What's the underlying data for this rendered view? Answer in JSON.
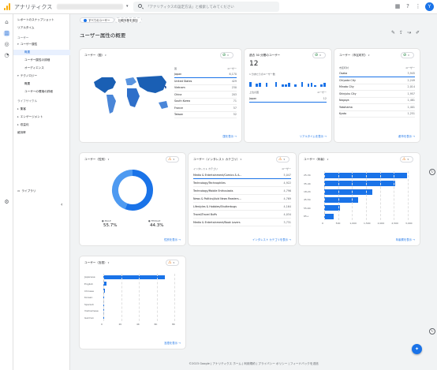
{
  "app": {
    "title": "アナリティクス"
  },
  "search": {
    "placeholder": "「アナリティクスの設定方法」と検索してみてください"
  },
  "nav": {
    "items": [
      {
        "label": "レポートのスナップショット",
        "type": "top"
      },
      {
        "label": "リアルタイム",
        "type": "top"
      },
      {
        "label": "ユーザー",
        "type": "section"
      },
      {
        "label": "ユーザー属性",
        "type": "group",
        "caret": "▾",
        "selected_group": true
      },
      {
        "label": "概要",
        "type": "sub",
        "selected": true
      },
      {
        "label": "ユーザー属性の詳細",
        "type": "sub"
      },
      {
        "label": "オーディエンス",
        "type": "sub"
      },
      {
        "label": "テクノロジー",
        "type": "group",
        "caret": "▾"
      },
      {
        "label": "概要",
        "type": "sub"
      },
      {
        "label": "ユーザーの環境の詳細",
        "type": "sub"
      },
      {
        "label": "ライフサイクル",
        "type": "section"
      },
      {
        "label": "集客",
        "type": "group",
        "caret": "▸"
      },
      {
        "label": "エンゲージメント",
        "type": "group",
        "caret": "▸"
      },
      {
        "label": "収益化",
        "type": "group",
        "caret": "▸"
      },
      {
        "label": "維持率",
        "type": "top"
      }
    ],
    "library": "ライブラリ",
    "collapse": "‹"
  },
  "filters": {
    "chip1": "すべてのユーザー",
    "chip2": "比較対象を追加",
    "add": "+"
  },
  "page": {
    "title": "ユーザー属性の概要"
  },
  "map_card": {
    "title": "ユーザー（国）",
    "col_country": "国",
    "col_users": "ユーザー",
    "rows": [
      {
        "name": "Japan",
        "value": "6,170"
      },
      {
        "name": "United States",
        "value": "429"
      },
      {
        "name": "Vietnam",
        "value": "230"
      },
      {
        "name": "China",
        "value": "203"
      },
      {
        "name": "South Korea",
        "value": "71"
      },
      {
        "name": "France",
        "value": "57"
      },
      {
        "name": "Taiwan",
        "value": "52"
      }
    ],
    "link": "国を表示"
  },
  "realtime_card": {
    "title": "過去 30 分間のユーザー",
    "value": "12",
    "sub": "1 分あたりのユーザー数",
    "col_country": "上位の国",
    "col_users": "ユーザー",
    "rows": [
      {
        "name": "Japan",
        "value": "12"
      }
    ],
    "link": "リアルタイムを表示"
  },
  "city_card": {
    "title": "ユーザー（市区町村）",
    "col_city": "市区町村",
    "col_users": "ユーザー",
    "rows": [
      {
        "name": "Osaka",
        "value": "3,945"
      },
      {
        "name": "Chiyoda City",
        "value": "2,249"
      },
      {
        "name": "Minato City",
        "value": "2,014"
      },
      {
        "name": "Shinjuku City",
        "value": "1,957"
      },
      {
        "name": "Nagoya",
        "value": "1,481"
      },
      {
        "name": "Yokohama",
        "value": "1,401"
      },
      {
        "name": "Kyoto",
        "value": "1,251"
      }
    ],
    "link": "都市を表示"
  },
  "gender_card": {
    "title": "ユーザー（性別）",
    "male_label": "MALE",
    "male_value": "55.7%",
    "female_label": "FEMALE",
    "female_value": "44.3%",
    "link": "性別を表示"
  },
  "interest_card": {
    "title": "ユーザー（インタレスト カテゴリ）",
    "col_cat": "インタレスト カテゴリ",
    "col_users": "ユーザー",
    "rows": [
      {
        "name": "Media & Entertainment/Comics & A...",
        "value": "5,047"
      },
      {
        "name": "Technology/Technophiles",
        "value": "4,922"
      },
      {
        "name": "Technology/Mobile Enthusiasts",
        "value": "4,796"
      },
      {
        "name": "News & Politics/Avid News Readers...",
        "value": "4,769"
      },
      {
        "name": "Lifestyles & Hobbies/Shutterbugs",
        "value": "4,164"
      },
      {
        "name": "Travel/Travel Buffs",
        "value": "4,034"
      },
      {
        "name": "Media & Entertainment/Book Lovers",
        "value": "3,731"
      }
    ],
    "link": "インタレスト カテゴリを表示"
  },
  "age_card": {
    "title": "ユーザー（年齢）",
    "x_ticks": [
      "0",
      "500",
      "1,000",
      "1,500",
      "2,000",
      "2,500",
      "3,000"
    ],
    "link": "年齢層を表示"
  },
  "language_card": {
    "title": "ユーザー（言語）",
    "x_ticks": [
      "0",
      "2K",
      "4K",
      "6K",
      "8K"
    ],
    "link": "言語を表示"
  },
  "footer": {
    "text": "©2023 Google | アナリティクス ホーム | 利用規約 | プライバシー ポリシー | フィードバックを送信"
  },
  "chart_data": [
    {
      "type": "bar",
      "orientation": "horizontal",
      "title": "ユーザー（年齢）",
      "categories": [
        "25-34",
        "35-44",
        "18-24",
        "45-54",
        "55-64",
        "65+"
      ],
      "values": [
        2960,
        2550,
        1730,
        1220,
        560,
        330
      ],
      "xlim": [
        0,
        3000
      ]
    },
    {
      "type": "bar",
      "orientation": "horizontal",
      "title": "ユーザー（言語）",
      "categories": [
        "Japanese",
        "English",
        "Chinese",
        "Korean",
        "Spanish",
        "Vietnamese",
        "German"
      ],
      "values": [
        6900,
        330,
        200,
        60,
        45,
        30,
        25
      ],
      "xlim": [
        0,
        8000
      ]
    },
    {
      "type": "pie",
      "title": "ユーザー（性別）",
      "categories": [
        "MALE",
        "FEMALE"
      ],
      "values": [
        55.7,
        44.3
      ]
    }
  ],
  "colors": {
    "accent": "#1a73e8",
    "ok": "#188038",
    "warn": "#e8710a"
  }
}
